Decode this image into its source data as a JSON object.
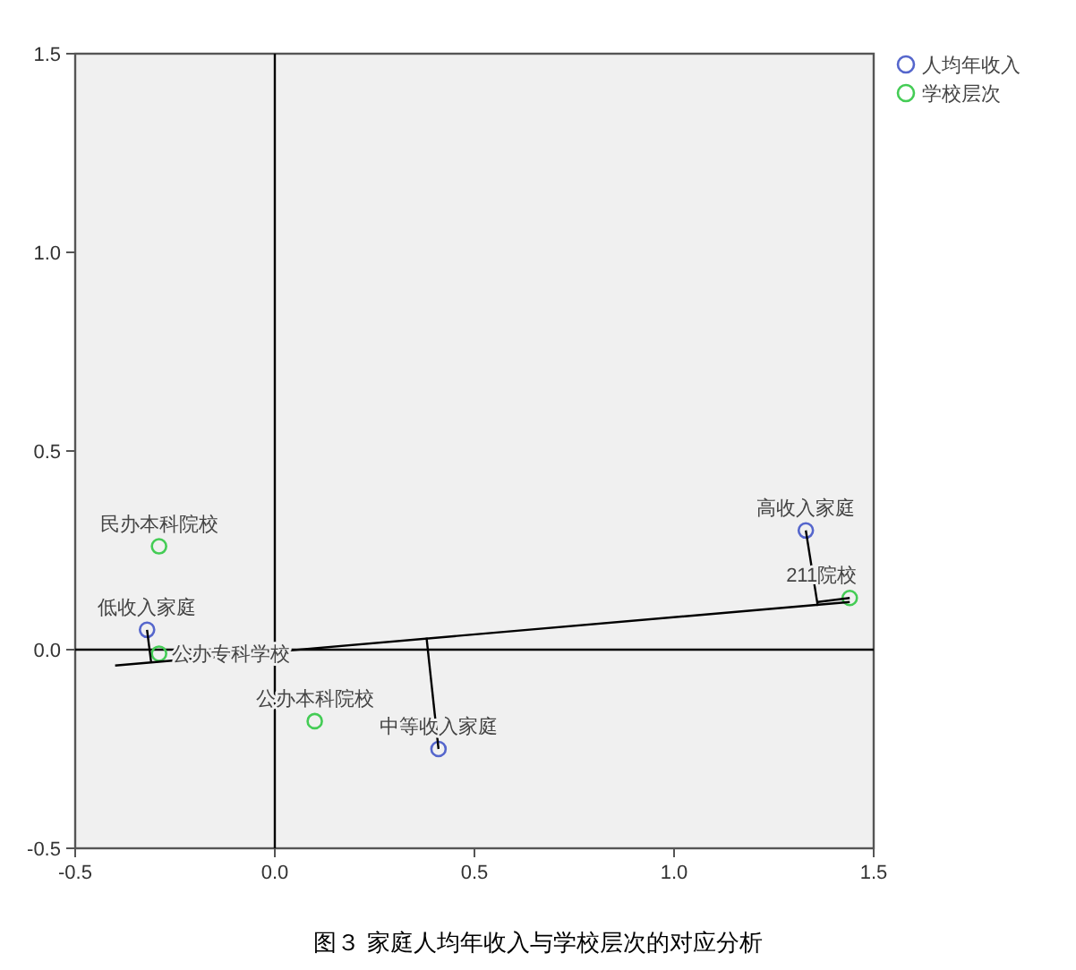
{
  "chart_data": {
    "type": "scatter",
    "marker": "circle",
    "legend": "top right",
    "grid": false,
    "xlim": [
      -0.5,
      1.5
    ],
    "ylim": [
      -0.5,
      1.5
    ],
    "xticks": [
      {
        "value": -0.5,
        "label": "-0.5"
      },
      {
        "value": 0,
        "label": "0.0"
      },
      {
        "value": 0.5,
        "label": "0.5"
      },
      {
        "value": 1,
        "label": "1.0"
      },
      {
        "value": 1.5,
        "label": "1.5"
      }
    ],
    "yticks": [
      {
        "value": -0.5,
        "label": "-0.5"
      },
      {
        "value": 0,
        "label": "0.0"
      },
      {
        "value": 0.5,
        "label": "0.5"
      },
      {
        "value": 1,
        "label": "1.0"
      },
      {
        "value": 1.5,
        "label": "1.5"
      }
    ],
    "series": [
      {
        "type": "line",
        "marker": "none",
        "color": "#000000",
        "x": [
          0,
          0
        ],
        "values": [
          -0.5,
          1.5
        ]
      },
      {
        "type": "line",
        "marker": "none",
        "color": "#000000",
        "x": [
          -0.5,
          1.5
        ],
        "values": [
          0,
          0
        ]
      },
      {
        "name": "人均年收入",
        "color": "#5566cc",
        "x": [
          -0.32,
          0.41,
          1.33
        ],
        "values": [
          0.05,
          -0.25,
          0.3
        ]
      },
      {
        "name": "学校层次",
        "color": "#44cc55",
        "x": [
          -0.29,
          -0.29,
          0.1,
          1.44
        ],
        "values": [
          0.26,
          -0.01,
          -0.18,
          0.13
        ]
      },
      {
        "type": "line",
        "marker": "none",
        "color": "#000000",
        "x": [
          -0.4,
          1.44
        ],
        "values": [
          -0.04,
          0.12
        ]
      },
      {
        "type": "line",
        "marker": "none",
        "color": "#000000",
        "x": [
          -0.32,
          -0.31
        ],
        "values": [
          0.05,
          -0.03
        ]
      },
      {
        "type": "line",
        "marker": "none",
        "color": "#000000",
        "x": [
          0.41,
          0.38
        ],
        "values": [
          -0.25,
          0.03
        ]
      },
      {
        "type": "line",
        "marker": "none",
        "color": "#000000",
        "x": [
          1.33,
          1.36
        ],
        "values": [
          0.3,
          0.11
        ]
      },
      {
        "type": "line",
        "marker": "none",
        "color": "#000000",
        "x": [
          1.44,
          1.36
        ],
        "values": [
          0.13,
          0.12
        ]
      }
    ],
    "annotations": [
      {
        "text": "低收入家庭",
        "x": -0.32,
        "y": 0.05
      },
      {
        "text": "中等收入家庭",
        "x": 0.41,
        "y": -0.25
      },
      {
        "text": "高收入家庭",
        "x": 1.33,
        "y": 0.3
      },
      {
        "text": "民办本科院校",
        "x": -0.29,
        "y": 0.26
      },
      {
        "text": "公办专科学校",
        "x": -0.29,
        "y": -0.01
      },
      {
        "text": "公办本科院校",
        "x": 0.1,
        "y": -0.18
      },
      {
        "text": "211院校",
        "x": 1.44,
        "y": 0.13
      },
      "图３  家庭人均年收入与学校层次的对应分析"
    ]
  }
}
